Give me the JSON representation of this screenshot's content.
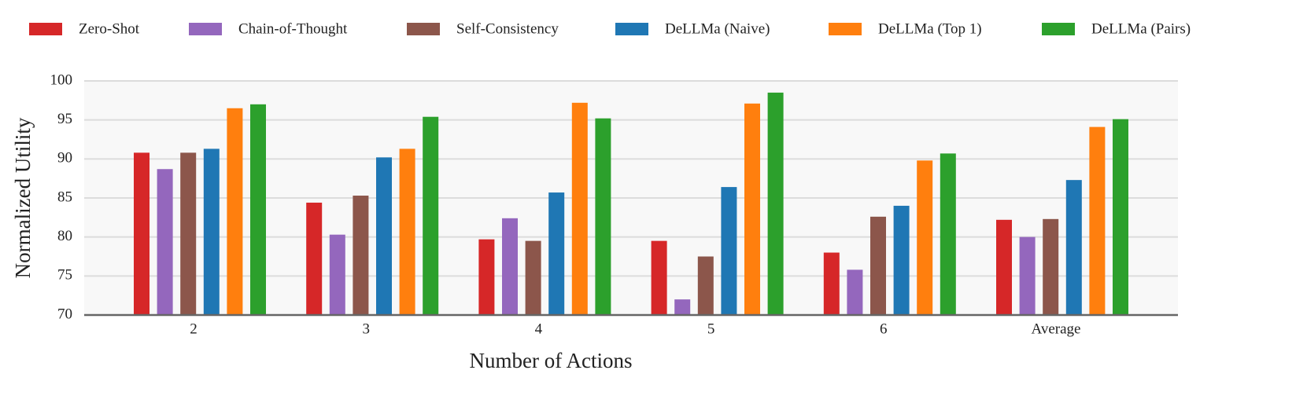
{
  "chart_data": {
    "type": "bar",
    "x_label": "Number of Actions",
    "y_label": "Normalized Utility",
    "categories": [
      "2",
      "3",
      "4",
      "5",
      "6",
      "Average"
    ],
    "series": [
      {
        "name": "Zero-Shot",
        "color": "#d62728",
        "values": [
          90.8,
          84.4,
          79.7,
          79.5,
          78.0,
          82.2
        ]
      },
      {
        "name": "Chain-of-Thought",
        "color": "#9467bd",
        "values": [
          88.7,
          80.3,
          82.4,
          72.0,
          75.8,
          80.0
        ]
      },
      {
        "name": "Self-Consistency",
        "color": "#8c564b",
        "values": [
          90.8,
          85.3,
          79.5,
          77.5,
          82.6,
          82.3
        ]
      },
      {
        "name": "DeLLMa (Naive)",
        "color": "#1f77b4",
        "values": [
          91.3,
          90.2,
          85.7,
          86.4,
          84.0,
          87.3
        ]
      },
      {
        "name": "DeLLMa (Top 1)",
        "color": "#ff7f0e",
        "values": [
          96.5,
          91.3,
          97.2,
          97.1,
          89.8,
          94.1
        ]
      },
      {
        "name": "DeLLMa (Pairs)",
        "color": "#2ca02c",
        "values": [
          97.0,
          95.4,
          95.2,
          98.5,
          90.7,
          95.1
        ]
      }
    ],
    "ylim": [
      70,
      100
    ],
    "yticks": [
      70,
      75,
      80,
      85,
      90,
      95,
      100
    ],
    "grid": true,
    "legend": "top"
  }
}
